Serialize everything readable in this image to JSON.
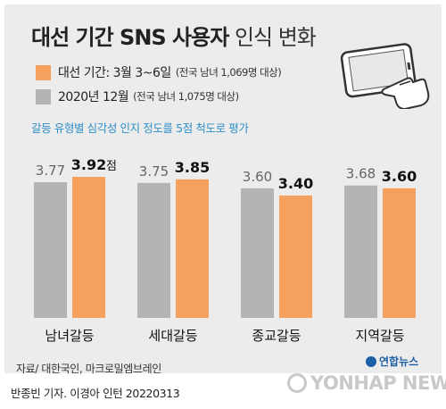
{
  "title_bold": "대선 기간 SNS 사용자",
  "title_light": "인식 변화",
  "subtitle": "갈등 유형별 심각성 인지 정도를 5점 척도로 평가",
  "unit_suffix": "점",
  "source": "자료/ 대한국인, 마크로밀엠브레인",
  "credit": "반종빈 기자. 이경아 인턴  20220313",
  "logo_small": "연합뉴스",
  "logo_big": "YONHAP NEWS",
  "colors": {
    "orange": "#f5a15d",
    "gray": "#b4b4b4",
    "panel": "#ececec"
  },
  "icons": [
    "tablet-icon",
    "pointing-hand-icon"
  ],
  "chart_data": {
    "type": "bar",
    "categories": [
      "남녀갈등",
      "세대갈등",
      "종교갈등",
      "지역갈등"
    ],
    "series": [
      {
        "name": "2020년 12월",
        "note": "(전국 남녀 1,075명 대상)",
        "color": "#b4b4b4",
        "values": [
          3.77,
          3.75,
          3.6,
          3.68
        ]
      },
      {
        "name": "대선 기간: 3월 3~6일",
        "note": "(전국 남녀 1,069명 대상)",
        "color": "#f5a15d",
        "values": [
          3.92,
          3.85,
          3.4,
          3.6
        ]
      }
    ],
    "value_labels": [
      [
        "3.77",
        "3.75",
        "3.60",
        "3.68"
      ],
      [
        "3.92",
        "3.85",
        "3.40",
        "3.60"
      ]
    ],
    "ylim": [
      0,
      4.5
    ],
    "legend": "top-left"
  }
}
